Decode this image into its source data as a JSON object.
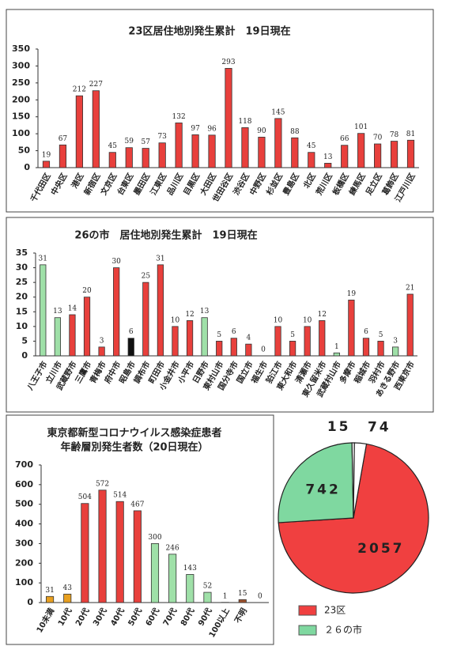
{
  "chart_data": [
    {
      "type": "bar",
      "title": "23区居住地別発生累計　19日現在",
      "categories": [
        "千代田区",
        "中央区",
        "港区",
        "新宿区",
        "文京区",
        "台東区",
        "墨田区",
        "江東区",
        "品川区",
        "目黒区",
        "大田区",
        "世田谷区",
        "渋谷区",
        "中野区",
        "杉並区",
        "豊島区",
        "北区",
        "荒川区",
        "板橋区",
        "練馬区",
        "足立区",
        "葛飾区",
        "江戸川区"
      ],
      "values": [
        19,
        67,
        212,
        227,
        45,
        59,
        57,
        73,
        132,
        97,
        96,
        293,
        118,
        90,
        145,
        88,
        45,
        13,
        66,
        101,
        70,
        78,
        81
      ],
      "color": "#e8403c",
      "ylim": [
        0,
        350
      ],
      "yticks": [
        0,
        50,
        100,
        150,
        200,
        250,
        300,
        350
      ]
    },
    {
      "type": "bar",
      "title": "26の市　居住地別発生累計　19日現在",
      "categories": [
        "八王子市",
        "立川市",
        "武蔵野市",
        "三鷹市",
        "青梅市",
        "府中市",
        "昭島市",
        "調布市",
        "町田市",
        "小金井市",
        "小平市",
        "日野市",
        "東村山市",
        "国分寺市",
        "国立市",
        "福生市",
        "狛江市",
        "東大和市",
        "清瀬市",
        "東久留米市",
        "武蔵村山市",
        "多摩市",
        "稲城市",
        "羽村市",
        "あきる野市",
        "西東京市"
      ],
      "values": [
        31,
        13,
        14,
        20,
        3,
        30,
        6,
        25,
        31,
        10,
        12,
        13,
        5,
        6,
        4,
        0,
        10,
        5,
        10,
        12,
        1,
        19,
        6,
        5,
        3,
        21
      ],
      "colors": [
        "#9fe0a8",
        "#9fe0a8",
        "#e8403c",
        "#e8403c",
        "#e8403c",
        "#e8403c",
        "#111111",
        "#e8403c",
        "#e8403c",
        "#e8403c",
        "#e8403c",
        "#9fe0a8",
        "#e8403c",
        "#e8403c",
        "#e8403c",
        "#e8403c",
        "#e8403c",
        "#e8403c",
        "#e8403c",
        "#e8403c",
        "#9fe0a8",
        "#e8403c",
        "#e8403c",
        "#e8403c",
        "#9fe0a8",
        "#e8403c"
      ],
      "ylim": [
        0,
        35
      ],
      "yticks": [
        0,
        5,
        10,
        15,
        20,
        25,
        30,
        35
      ]
    },
    {
      "type": "bar",
      "title": [
        "東京都新型コロナウイルス感染症患者",
        "年齢層別発生者数（20日現在）"
      ],
      "categories": [
        "10未満",
        "10代",
        "20代",
        "30代",
        "40代",
        "50代",
        "60代",
        "70代",
        "80代",
        "90代",
        "100以上",
        "不明",
        null
      ],
      "values": [
        31,
        43,
        504,
        572,
        514,
        467,
        300,
        246,
        143,
        52,
        1,
        15,
        0
      ],
      "colors": [
        "#e8a020",
        "#e8a020",
        "#e8403c",
        "#e8403c",
        "#e8403c",
        "#e8403c",
        "#9fe0a8",
        "#9fe0a8",
        "#9fe0a8",
        "#9fe0a8",
        "#999999",
        "#a0522d",
        "#999999"
      ],
      "ylim": [
        0,
        700
      ],
      "yticks": [
        0,
        100,
        200,
        300,
        400,
        500,
        600,
        700
      ]
    },
    {
      "type": "pie",
      "categories": [
        "23区",
        "２６の市",
        null,
        null
      ],
      "values": [
        2057,
        742,
        15,
        74
      ],
      "colors": [
        "#f04040",
        "#7fd8a0",
        "#ffffff",
        "#ffffff"
      ]
    }
  ]
}
